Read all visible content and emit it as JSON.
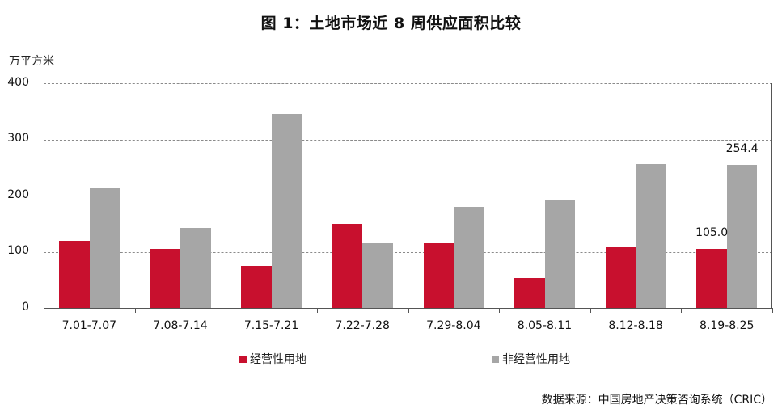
{
  "chart_data": {
    "type": "bar",
    "title": "图 1：土地市场近 8 周供应面积比较",
    "ylabel": "万平方米",
    "xlabel": "",
    "ylim": [
      0,
      400
    ],
    "yticks": [
      "0",
      "100",
      "200",
      "300",
      "400"
    ],
    "grid": true,
    "legend_position": "bottom",
    "categories": [
      "7.01-7.07",
      "7.08-7.14",
      "7.15-7.21",
      "7.22-7.28",
      "7.29-8.04",
      "8.05-8.11",
      "8.12-8.18",
      "8.19-8.25"
    ],
    "series": [
      {
        "name": "经营性用地",
        "color": "#c8102e",
        "values": [
          119,
          105,
          75,
          150,
          115,
          53,
          110,
          105.0
        ]
      },
      {
        "name": "非经营性用地",
        "color": "#a6a6a6",
        "values": [
          214,
          142,
          345,
          115,
          180,
          193,
          256,
          254.4
        ]
      }
    ],
    "annotations": [
      {
        "series": "经营性用地",
        "category": "8.19-8.25",
        "text": "105.0"
      },
      {
        "series": "非经营性用地",
        "category": "8.19-8.25",
        "text": "254.4"
      }
    ],
    "source": "数据来源：中国房地产决策咨询系统（CRIC）"
  }
}
